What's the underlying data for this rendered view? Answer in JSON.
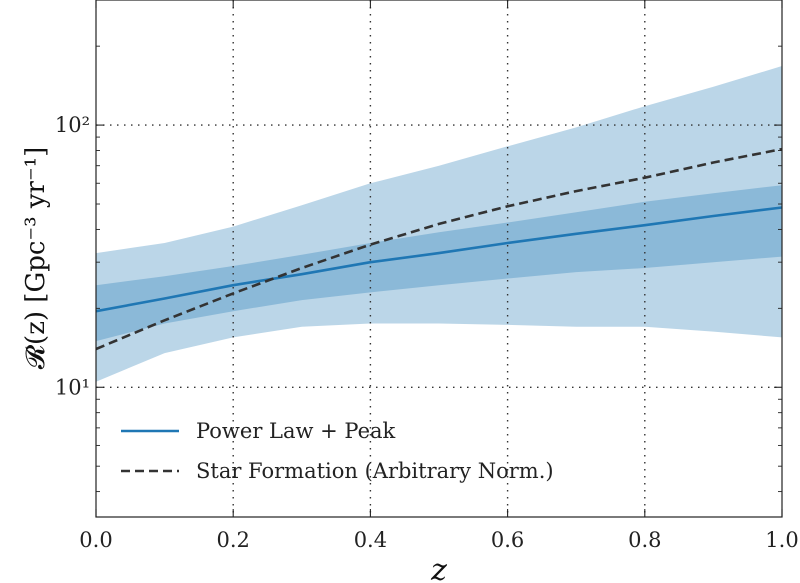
{
  "chart_data": {
    "type": "line",
    "xlabel": "z",
    "ylabel": "𝓡(z) [Gpc⁻³ yr⁻¹]",
    "y_scale": "log",
    "xlim": [
      0.0,
      1.0
    ],
    "ylim": [
      3.2,
      300
    ],
    "grid": "dotted at ticks",
    "legend_position": "lower-left",
    "x_ticks": [
      0.0,
      0.2,
      0.4,
      0.6,
      0.8,
      1.0
    ],
    "x_tick_labels": [
      "0.0",
      "0.2",
      "0.4",
      "0.6",
      "0.8",
      "1.0"
    ],
    "y_ticks": [
      10,
      100
    ],
    "y_tick_labels": [
      "10¹",
      "10²"
    ],
    "x": [
      0.0,
      0.1,
      0.2,
      0.3,
      0.4,
      0.5,
      0.6,
      0.7,
      0.8,
      0.9,
      1.0
    ],
    "series": [
      {
        "name": "Power Law + Peak",
        "style": "solid",
        "color": "#1f77b4",
        "values": [
          19.5,
          21.8,
          24.5,
          27.0,
          30.0,
          32.5,
          35.5,
          38.5,
          41.5,
          45.0,
          48.5
        ]
      },
      {
        "name": "Star Formation (Arbitrary Norm.)",
        "style": "dashed",
        "color": "#333333",
        "values": [
          14.0,
          18.0,
          22.8,
          28.5,
          35.0,
          42.0,
          49.0,
          56.0,
          63.0,
          72.0,
          81.0
        ]
      }
    ],
    "bands": [
      {
        "level": "outer",
        "color": "#1f77b4",
        "opacity": 0.3,
        "upper": [
          32.5,
          35.5,
          41.0,
          49.5,
          60.0,
          70.0,
          83.0,
          98.0,
          118.0,
          140.0,
          168.0
        ],
        "lower": [
          10.5,
          13.5,
          15.5,
          17.0,
          17.5,
          17.5,
          17.3,
          17.0,
          17.0,
          16.3,
          15.5
        ]
      },
      {
        "level": "inner",
        "color": "#1f77b4",
        "opacity": 0.3,
        "upper": [
          24.5,
          26.5,
          29.0,
          32.0,
          35.5,
          39.0,
          42.5,
          46.5,
          51.0,
          55.0,
          59.0
        ],
        "lower": [
          15.0,
          17.5,
          19.5,
          21.5,
          23.0,
          24.5,
          26.0,
          27.5,
          28.5,
          30.0,
          31.5
        ]
      }
    ]
  }
}
